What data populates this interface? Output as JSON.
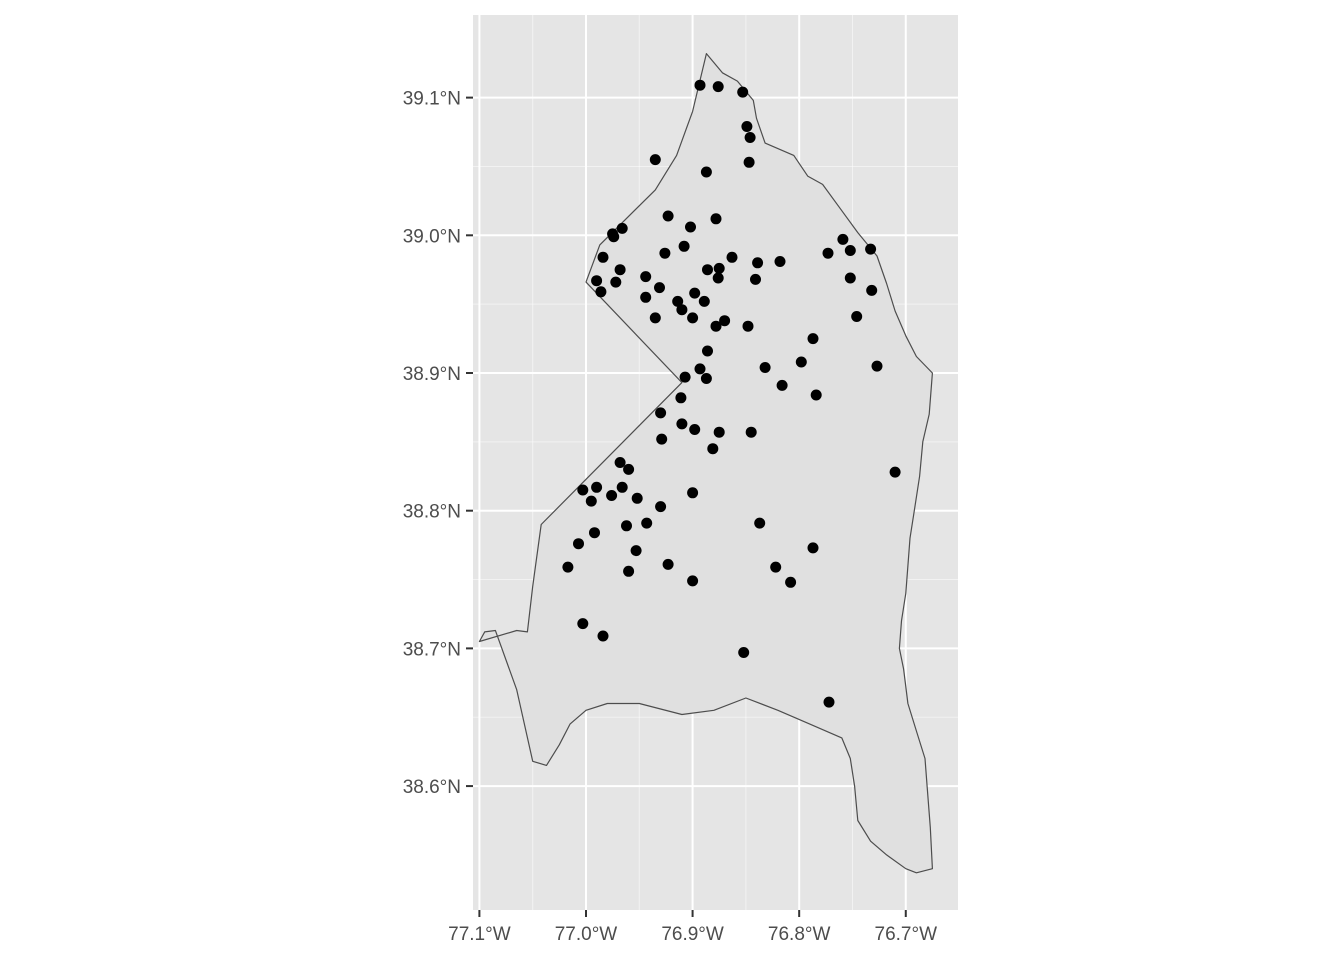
{
  "chart_data": {
    "type": "scatter",
    "title": "",
    "xlabel": "",
    "ylabel": "",
    "xlim": [
      -77.106,
      -76.651
    ],
    "ylim": [
      38.51,
      39.16
    ],
    "grid": true,
    "x_ticks": [
      {
        "value": -77.1,
        "label": "77.1°W"
      },
      {
        "value": -77.0,
        "label": "77.0°W"
      },
      {
        "value": -76.9,
        "label": "76.9°W"
      },
      {
        "value": -76.8,
        "label": "76.8°W"
      },
      {
        "value": -76.7,
        "label": "76.7°W"
      }
    ],
    "y_ticks": [
      {
        "value": 38.6,
        "label": "38.6°N"
      },
      {
        "value": 38.7,
        "label": "38.7°N"
      },
      {
        "value": 38.8,
        "label": "38.8°N"
      },
      {
        "value": 38.9,
        "label": "38.9°N"
      },
      {
        "value": 39.0,
        "label": "39.0°N"
      },
      {
        "value": 39.1,
        "label": "39.1°N"
      }
    ],
    "colors": {
      "panel_background": "#e5e5e5",
      "grid": "#ffffff",
      "polygon_fill": "#e0e0e0",
      "polygon_stroke": "#4d4d4d",
      "point": "#000000",
      "tick_text": "#4d4d4d"
    },
    "boundary": [
      [
        -76.887,
        39.132
      ],
      [
        -76.872,
        39.118
      ],
      [
        -76.858,
        39.112
      ],
      [
        -76.843,
        39.098
      ],
      [
        -76.84,
        39.085
      ],
      [
        -76.832,
        39.067
      ],
      [
        -76.805,
        39.058
      ],
      [
        -76.792,
        39.043
      ],
      [
        -76.778,
        39.037
      ],
      [
        -76.762,
        39.02
      ],
      [
        -76.745,
        39.002
      ],
      [
        -76.727,
        38.985
      ],
      [
        -76.718,
        38.965
      ],
      [
        -76.71,
        38.945
      ],
      [
        -76.7,
        38.927
      ],
      [
        -76.69,
        38.912
      ],
      [
        -76.675,
        38.9
      ],
      [
        -76.678,
        38.87
      ],
      [
        -76.684,
        38.85
      ],
      [
        -76.687,
        38.825
      ],
      [
        -76.692,
        38.8
      ],
      [
        -76.696,
        38.78
      ],
      [
        -76.698,
        38.76
      ],
      [
        -76.7,
        38.74
      ],
      [
        -76.704,
        38.72
      ],
      [
        -76.706,
        38.7
      ],
      [
        -76.702,
        38.685
      ],
      [
        -76.698,
        38.66
      ],
      [
        -76.69,
        38.64
      ],
      [
        -76.682,
        38.62
      ],
      [
        -76.68,
        38.6
      ],
      [
        -76.677,
        38.57
      ],
      [
        -76.675,
        38.54
      ],
      [
        -76.69,
        38.537
      ],
      [
        -76.7,
        38.54
      ],
      [
        -76.718,
        38.55
      ],
      [
        -76.733,
        38.56
      ],
      [
        -76.745,
        38.575
      ],
      [
        -76.748,
        38.6
      ],
      [
        -76.752,
        38.62
      ],
      [
        -76.76,
        38.635
      ],
      [
        -76.79,
        38.645
      ],
      [
        -76.82,
        38.655
      ],
      [
        -76.85,
        38.664
      ],
      [
        -76.88,
        38.655
      ],
      [
        -76.91,
        38.652
      ],
      [
        -76.95,
        38.66
      ],
      [
        -76.98,
        38.66
      ],
      [
        -77.0,
        38.655
      ],
      [
        -77.015,
        38.645
      ],
      [
        -77.025,
        38.63
      ],
      [
        -77.037,
        38.615
      ],
      [
        -77.05,
        38.618
      ],
      [
        -77.065,
        38.67
      ],
      [
        -77.085,
        38.713
      ],
      [
        -77.095,
        38.712
      ],
      [
        -77.1,
        38.705
      ],
      [
        -77.065,
        38.713
      ],
      [
        -77.055,
        38.712
      ],
      [
        -77.05,
        38.745
      ],
      [
        -77.042,
        38.79
      ],
      [
        -76.91,
        38.893
      ],
      [
        -77.0,
        38.966
      ],
      [
        -76.987,
        38.993
      ],
      [
        -76.935,
        39.033
      ],
      [
        -76.915,
        39.058
      ],
      [
        -76.9,
        39.09
      ]
    ],
    "points": {
      "lon": [
        -76.893,
        -76.876,
        -76.853,
        -76.849,
        -76.846,
        -76.935,
        -76.887,
        -76.847,
        -76.923,
        -76.878,
        -76.902,
        -76.966,
        -76.975,
        -76.974,
        -76.984,
        -76.908,
        -76.926,
        -76.863,
        -76.875,
        -76.839,
        -76.818,
        -76.773,
        -76.759,
        -76.752,
        -76.733,
        -76.968,
        -76.99,
        -76.972,
        -76.944,
        -76.886,
        -76.876,
        -76.841,
        -76.752,
        -76.986,
        -76.931,
        -76.944,
        -76.914,
        -76.898,
        -76.889,
        -76.91,
        -76.732,
        -76.935,
        -76.9,
        -76.87,
        -76.878,
        -76.848,
        -76.746,
        -76.787,
        -76.886,
        -76.832,
        -76.798,
        -76.727,
        -76.893,
        -76.907,
        -76.887,
        -76.816,
        -76.784,
        -76.911,
        -76.93,
        -76.898,
        -76.91,
        -76.875,
        -76.845,
        -76.929,
        -76.881,
        -76.968,
        -76.96,
        -77.003,
        -76.99,
        -76.966,
        -76.995,
        -76.976,
        -76.952,
        -76.71,
        -76.93,
        -76.9,
        -76.943,
        -76.962,
        -76.992,
        -76.837,
        -77.007,
        -76.953,
        -76.787,
        -76.923,
        -77.017,
        -76.96,
        -76.822,
        -76.9,
        -76.808,
        -77.003,
        -76.984,
        -76.852,
        -76.772
      ],
      "lat": [
        39.109,
        39.108,
        39.104,
        39.079,
        39.071,
        39.055,
        39.046,
        39.053,
        39.014,
        39.012,
        39.006,
        39.005,
        39.001,
        38.999,
        38.984,
        38.992,
        38.987,
        38.984,
        38.976,
        38.98,
        38.981,
        38.987,
        38.997,
        38.989,
        38.99,
        38.975,
        38.967,
        38.966,
        38.97,
        38.975,
        38.969,
        38.968,
        38.969,
        38.959,
        38.962,
        38.955,
        38.952,
        38.958,
        38.952,
        38.946,
        38.96,
        38.94,
        38.94,
        38.938,
        38.934,
        38.934,
        38.941,
        38.925,
        38.916,
        38.904,
        38.908,
        38.905,
        38.903,
        38.897,
        38.896,
        38.891,
        38.884,
        38.882,
        38.871,
        38.859,
        38.863,
        38.857,
        38.857,
        38.852,
        38.845,
        38.835,
        38.83,
        38.815,
        38.817,
        38.817,
        38.807,
        38.811,
        38.809,
        38.828,
        38.803,
        38.813,
        38.791,
        38.789,
        38.784,
        38.791,
        38.776,
        38.771,
        38.773,
        38.761,
        38.759,
        38.756,
        38.759,
        38.749,
        38.748,
        38.718,
        38.709,
        38.697,
        38.661
      ]
    }
  }
}
